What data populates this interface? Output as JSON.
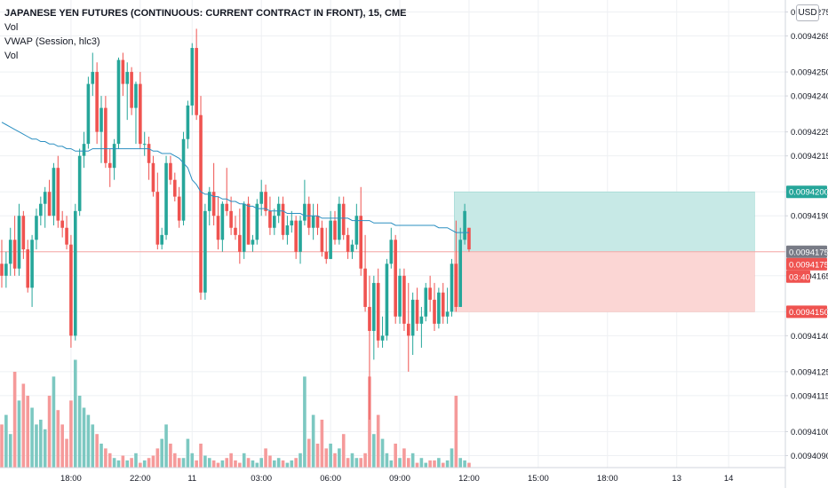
{
  "header": {
    "symbol_line": "JAPANESE YEN FUTURES (CONTINUOUS: CURRENT CONTRACT IN FRONT), 15, CME",
    "indicator_1": "Vol",
    "indicator_2": "VWAP (Session, hlc3)",
    "indicator_3": "Vol"
  },
  "currency_button": "USD",
  "colors": {
    "up": "#26a69a",
    "down": "#ef5350",
    "vwap": "#2b8fc1",
    "vol_up": "#7cc8c1",
    "vol_down": "#f59a9a",
    "target_zone": "#c7e9e6",
    "stop_zone": "#fbd6d4",
    "grid": "#eef0f3"
  },
  "chart_data": {
    "type": "candlestick",
    "y_axis": {
      "min": 0.0094085,
      "max": 0.009428,
      "ticks": [
        "0.0094275",
        "0.0094265",
        "0.0094250",
        "0.0094240",
        "0.0094225",
        "0.0094215",
        "0.0094200",
        "0.0094190",
        "0.0094175",
        "0.0094165",
        "0.0094150",
        "0.0094140",
        "0.0094125",
        "0.0094115",
        "0.0094100",
        "0.0094090"
      ],
      "tick_values": [
        0.0094275,
        0.0094265,
        0.009425,
        0.009424,
        0.0094225,
        0.0094215,
        0.00942,
        0.009419,
        0.0094175,
        0.0094165,
        0.009415,
        0.009414,
        0.0094125,
        0.0094115,
        0.00941,
        0.009409
      ]
    },
    "x_axis": {
      "labels": [
        "18:00",
        "22:00",
        "11",
        "03:00",
        "06:00",
        "09:00",
        "12:00",
        "15:00",
        "18:00",
        "13",
        "14"
      ],
      "label_bars": [
        16,
        32,
        44,
        60,
        76,
        92,
        108,
        124,
        140,
        156,
        168
      ]
    },
    "bar_count": 109,
    "candles": [
      [
        0.009417,
        0.009418,
        0.009416,
        0.0094165
      ],
      [
        0.0094165,
        0.0094175,
        0.009416,
        0.009417
      ],
      [
        0.009417,
        0.0094185,
        0.0094165,
        0.009418
      ],
      [
        0.009418,
        0.009419,
        0.0094165,
        0.0094168
      ],
      [
        0.0094168,
        0.0094195,
        0.0094165,
        0.009419
      ],
      [
        0.009419,
        0.0094192,
        0.0094172,
        0.0094176
      ],
      [
        0.0094176,
        0.009418,
        0.0094158,
        0.009416
      ],
      [
        0.009416,
        0.0094182,
        0.0094152,
        0.009418
      ],
      [
        0.009418,
        0.0094193,
        0.0094176,
        0.009419
      ],
      [
        0.009419,
        0.0094198,
        0.0094186,
        0.0094195
      ],
      [
        0.0094195,
        0.0094202,
        0.0094185,
        0.00942
      ],
      [
        0.00942,
        0.0094205,
        0.009419,
        0.009419
      ],
      [
        0.009419,
        0.0094212,
        0.0094186,
        0.009421
      ],
      [
        0.009421,
        0.0094215,
        0.0094185,
        0.0094188
      ],
      [
        0.0094188,
        0.0094192,
        0.0094181,
        0.0094185
      ],
      [
        0.0094185,
        0.009419,
        0.0094176,
        0.0094178
      ],
      [
        0.0094178,
        0.0094182,
        0.0094135,
        0.009414
      ],
      [
        0.009414,
        0.0094195,
        0.0094138,
        0.0094192
      ],
      [
        0.0094192,
        0.0094218,
        0.009419,
        0.0094215
      ],
      [
        0.0094215,
        0.0094225,
        0.009421,
        0.009422
      ],
      [
        0.009422,
        0.0094248,
        0.0094218,
        0.0094245
      ],
      [
        0.0094245,
        0.0094258,
        0.009424,
        0.009425
      ],
      [
        0.009425,
        0.0094254,
        0.009422,
        0.0094225
      ],
      [
        0.0094225,
        0.009424,
        0.0094212,
        0.0094235
      ],
      [
        0.0094235,
        0.009424,
        0.009421,
        0.0094212
      ],
      [
        0.0094212,
        0.0094218,
        0.0094202,
        0.009421
      ],
      [
        0.009421,
        0.0094222,
        0.0094205,
        0.009422
      ],
      [
        0.009422,
        0.0094256,
        0.0094218,
        0.0094255
      ],
      [
        0.0094255,
        0.0094258,
        0.009424,
        0.0094245
      ],
      [
        0.0094245,
        0.0094254,
        0.009423,
        0.009425
      ],
      [
        0.009425,
        0.0094252,
        0.0094232,
        0.0094235
      ],
      [
        0.0094235,
        0.0094246,
        0.009422,
        0.0094245
      ],
      [
        0.0094245,
        0.009425,
        0.0094218,
        0.009422
      ],
      [
        0.009422,
        0.0094225,
        0.0094215,
        0.009422
      ],
      [
        0.009422,
        0.0094223,
        0.0094205,
        0.0094212
      ],
      [
        0.0094212,
        0.0094215,
        0.0094198,
        0.00942
      ],
      [
        0.00942,
        0.0094208,
        0.0094176,
        0.0094178
      ],
      [
        0.0094178,
        0.0094185,
        0.0094176,
        0.0094182
      ],
      [
        0.0094182,
        0.0094215,
        0.009418,
        0.0094212
      ],
      [
        0.0094212,
        0.0094215,
        0.0094203,
        0.0094205
      ],
      [
        0.0094205,
        0.0094208,
        0.0094196,
        0.0094198
      ],
      [
        0.0094198,
        0.0094202,
        0.0094185,
        0.0094188
      ],
      [
        0.0094188,
        0.0094225,
        0.0094186,
        0.0094222
      ],
      [
        0.0094222,
        0.0094238,
        0.0094218,
        0.0094236
      ],
      [
        0.0094236,
        0.0094262,
        0.0094232,
        0.009426
      ],
      [
        0.009426,
        0.0094268,
        0.009423,
        0.0094232
      ],
      [
        0.0094232,
        0.009424,
        0.0094155,
        0.0094158
      ],
      [
        0.0094158,
        0.0094195,
        0.0094155,
        0.0094192
      ],
      [
        0.0094192,
        0.0094202,
        0.0094186,
        0.00942
      ],
      [
        0.00942,
        0.0094212,
        0.0094186,
        0.009419
      ],
      [
        0.009419,
        0.0094198,
        0.0094176,
        0.009418
      ],
      [
        0.009418,
        0.0094196,
        0.0094175,
        0.0094195
      ],
      [
        0.0094195,
        0.009421,
        0.009419,
        0.0094192
      ],
      [
        0.0094192,
        0.0094198,
        0.0094182,
        0.0094185
      ],
      [
        0.0094185,
        0.009419,
        0.009418,
        0.0094182
      ],
      [
        0.0094182,
        0.0094193,
        0.009417,
        0.0094175
      ],
      [
        0.0094175,
        0.0094196,
        0.0094172,
        0.0094195
      ],
      [
        0.0094195,
        0.0094198,
        0.0094178,
        0.0094178
      ],
      [
        0.0094178,
        0.0094182,
        0.0094175,
        0.009418
      ],
      [
        0.009418,
        0.0094197,
        0.0094178,
        0.0094195
      ],
      [
        0.0094195,
        0.0094205,
        0.009419,
        0.00942
      ],
      [
        0.00942,
        0.0094203,
        0.009419,
        0.0094192
      ],
      [
        0.0094192,
        0.0094198,
        0.0094182,
        0.0094185
      ],
      [
        0.0094185,
        0.0094193,
        0.0094182,
        0.009419
      ],
      [
        0.009419,
        0.0094198,
        0.0094187,
        0.0094195
      ],
      [
        0.0094195,
        0.0094198,
        0.009418,
        0.0094182
      ],
      [
        0.0094182,
        0.009419,
        0.0094178,
        0.0094186
      ],
      [
        0.0094186,
        0.0094192,
        0.0094183,
        0.0094188
      ],
      [
        0.0094188,
        0.009419,
        0.0094172,
        0.0094175
      ],
      [
        0.0094175,
        0.009419,
        0.009417,
        0.0094188
      ],
      [
        0.0094188,
        0.0094205,
        0.0094186,
        0.0094195
      ],
      [
        0.0094195,
        0.0094198,
        0.0094182,
        0.0094185
      ],
      [
        0.0094185,
        0.0094195,
        0.009418,
        0.009419
      ],
      [
        0.009419,
        0.0094195,
        0.0094182,
        0.0094185
      ],
      [
        0.0094185,
        0.0094188,
        0.0094173,
        0.0094175
      ],
      [
        0.0094175,
        0.0094185,
        0.009417,
        0.0094172
      ],
      [
        0.0094172,
        0.0094192,
        0.0094172,
        0.0094188
      ],
      [
        0.0094188,
        0.0094192,
        0.0094178,
        0.009418
      ],
      [
        0.009418,
        0.0094198,
        0.0094178,
        0.0094195
      ],
      [
        0.0094195,
        0.0094198,
        0.009418,
        0.0094182
      ],
      [
        0.0094182,
        0.0094185,
        0.0094172,
        0.0094175
      ],
      [
        0.0094175,
        0.009418,
        0.0094172,
        0.0094178
      ],
      [
        0.0094178,
        0.0094195,
        0.0094176,
        0.009419
      ],
      [
        0.009419,
        0.0094202,
        0.0094165,
        0.0094168
      ],
      [
        0.0094168,
        0.0094182,
        0.009415,
        0.0094152
      ],
      [
        0.0094152,
        0.0094165,
        0.0094105,
        0.0094142
      ],
      [
        0.0094142,
        0.0094165,
        0.009413,
        0.0094162
      ],
      [
        0.0094162,
        0.0094168,
        0.0094135,
        0.0094138
      ],
      [
        0.0094138,
        0.0094148,
        0.0094135,
        0.009414
      ],
      [
        0.009414,
        0.0094172,
        0.0094138,
        0.009417
      ],
      [
        0.009417,
        0.0094185,
        0.0094168,
        0.009418
      ],
      [
        0.009418,
        0.0094182,
        0.0094145,
        0.0094148
      ],
      [
        0.0094148,
        0.0094168,
        0.0094145,
        0.0094165
      ],
      [
        0.0094165,
        0.0094168,
        0.0094142,
        0.0094145
      ],
      [
        0.0094145,
        0.0094162,
        0.0094125,
        0.009414
      ],
      [
        0.009414,
        0.0094158,
        0.0094132,
        0.0094155
      ],
      [
        0.0094155,
        0.009416,
        0.0094142,
        0.0094145
      ],
      [
        0.0094145,
        0.0094152,
        0.0094135,
        0.0094148
      ],
      [
        0.0094148,
        0.0094162,
        0.0094146,
        0.009416
      ],
      [
        0.009416,
        0.0094165,
        0.009415,
        0.0094155
      ],
      [
        0.0094155,
        0.0094162,
        0.0094142,
        0.0094145
      ],
      [
        0.0094145,
        0.009416,
        0.0094143,
        0.0094158
      ],
      [
        0.0094158,
        0.0094162,
        0.0094145,
        0.0094148
      ],
      [
        0.0094148,
        0.009416,
        0.0094145,
        0.009415
      ],
      [
        0.009415,
        0.0094172,
        0.0094148,
        0.009417
      ],
      [
        0.009417,
        0.0094188,
        0.009415,
        0.0094152
      ],
      [
        0.0094152,
        0.0094185,
        0.0094152,
        0.009418
      ],
      [
        0.009418,
        0.0094195,
        0.0094178,
        0.0094192
      ],
      [
        0.0094185,
        0.0094185,
        0.0094175,
        0.0094176
      ]
    ],
    "volume": [
      18,
      22,
      14,
      40,
      28,
      35,
      30,
      25,
      18,
      20,
      16,
      30,
      38,
      24,
      18,
      12,
      28,
      45,
      30,
      25,
      22,
      18,
      14,
      10,
      8,
      6,
      4,
      3,
      5,
      3,
      4,
      6,
      2,
      3,
      4,
      5,
      8,
      12,
      18,
      10,
      6,
      4,
      4,
      12,
      6,
      3,
      10,
      5,
      4,
      3,
      2,
      3,
      4,
      6,
      3,
      2,
      6,
      4,
      3,
      2,
      4,
      8,
      5,
      3,
      4,
      3,
      2,
      3,
      4,
      6,
      38,
      12,
      22,
      10,
      20,
      8,
      10,
      6,
      8,
      14,
      4,
      6,
      4,
      4,
      6,
      38,
      14,
      22,
      12,
      6,
      3,
      10,
      4,
      8,
      4,
      6,
      2,
      4,
      2,
      3,
      3,
      4,
      2,
      3,
      8,
      30,
      4,
      3,
      2
    ],
    "volume_scale_max": 50,
    "vwap": [
      0.0094229,
      0.0094228,
      0.0094227,
      0.0094226,
      0.0094225,
      0.0094224,
      0.0094223,
      0.0094222,
      0.0094222,
      0.0094221,
      0.0094221,
      0.009422,
      0.009422,
      0.0094219,
      0.0094219,
      0.0094218,
      0.0094218,
      0.0094217,
      0.0094217,
      0.0094217,
      0.0094217,
      0.0094218,
      0.0094218,
      0.0094218,
      0.0094218,
      0.0094218,
      0.0094218,
      0.0094218,
      0.0094218,
      0.0094218,
      0.0094218,
      0.0094218,
      0.0094218,
      0.0094218,
      0.0094218,
      0.0094217,
      0.0094217,
      0.0094216,
      0.0094216,
      0.0094216,
      0.0094215,
      0.0094214,
      0.0094212,
      0.009421,
      0.0094205,
      0.0094203,
      0.00942,
      0.0094199,
      0.0094199,
      0.0094198,
      0.0094198,
      0.0094197,
      0.0094197,
      0.0094196,
      0.0094196,
      0.0094195,
      0.0094195,
      0.0094194,
      0.0094194,
      0.0094193,
      0.0094193,
      0.0094193,
      0.0094192,
      0.0094192,
      0.0094192,
      0.0094192,
      0.0094191,
      0.0094191,
      0.0094191,
      0.0094191,
      0.009419,
      0.009419,
      0.009419,
      0.009419,
      0.0094189,
      0.0094189,
      0.0094189,
      0.0094189,
      0.0094189,
      0.0094189,
      0.0094189,
      0.0094188,
      0.0094188,
      0.0094188,
      0.0094188,
      0.0094188,
      0.0094187,
      0.0094187,
      0.0094187,
      0.0094187,
      0.0094187,
      0.0094186,
      0.0094186,
      0.0094186,
      0.0094186,
      0.0094186,
      0.0094186,
      0.0094186,
      0.0094186,
      0.0094186,
      0.0094186,
      0.0094185,
      0.0094185,
      0.0094185,
      0.0094184,
      0.0094183,
      0.0094183,
      0.0094183,
      0.0094183
    ],
    "position": {
      "type": "long",
      "entry": 0.0094175,
      "target": 0.00942,
      "stop": 0.009415,
      "start_bar": 105,
      "end_bar": 174
    },
    "price_labels": [
      {
        "text": "0.0094200",
        "value": 0.00942,
        "color": "#26a69a"
      },
      {
        "text": "0.0094175",
        "value": 0.0094175,
        "color": "#787b86"
      },
      {
        "text": "0.0094175",
        "value": 0.0094175,
        "color": "#ef5350",
        "offset_rows": 1
      },
      {
        "text": "03:40",
        "value": 0.0094175,
        "color": "#ef5350",
        "offset_rows": 2
      },
      {
        "text": "0.0094150",
        "value": 0.009415,
        "color": "#ef5350"
      }
    ]
  }
}
